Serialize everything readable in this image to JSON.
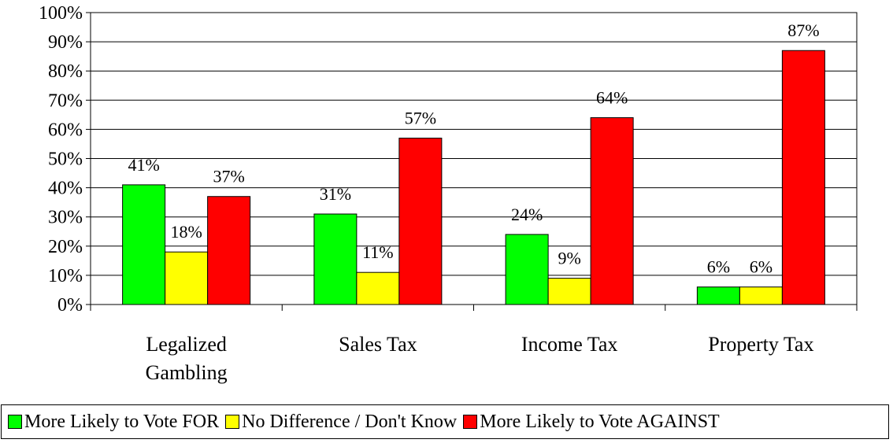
{
  "chart_data": {
    "type": "bar",
    "categories": [
      [
        "Legalized",
        "Gambling"
      ],
      [
        "Sales Tax"
      ],
      [
        "Income Tax"
      ],
      [
        "Property Tax"
      ]
    ],
    "series": [
      {
        "name": "More Likely to Vote FOR",
        "color": "#00ff00",
        "values": [
          41,
          31,
          24,
          6
        ],
        "labels": [
          "41%",
          "31%",
          "24%",
          "6%"
        ]
      },
      {
        "name": "No Difference / Don't Know",
        "color": "#ffff00",
        "values": [
          18,
          11,
          9,
          6
        ],
        "labels": [
          "18%",
          "11%",
          "9%",
          "6%"
        ]
      },
      {
        "name": "More Likely to Vote AGAINST",
        "color": "#ff0000",
        "values": [
          37,
          57,
          64,
          87
        ],
        "labels": [
          "37%",
          "57%",
          "64%",
          "87%"
        ]
      }
    ],
    "yticks": [
      "0%",
      "10%",
      "20%",
      "30%",
      "40%",
      "50%",
      "60%",
      "70%",
      "80%",
      "90%",
      "100%"
    ],
    "ylim": [
      0,
      100
    ],
    "grid": true,
    "legend_position": "bottom"
  }
}
